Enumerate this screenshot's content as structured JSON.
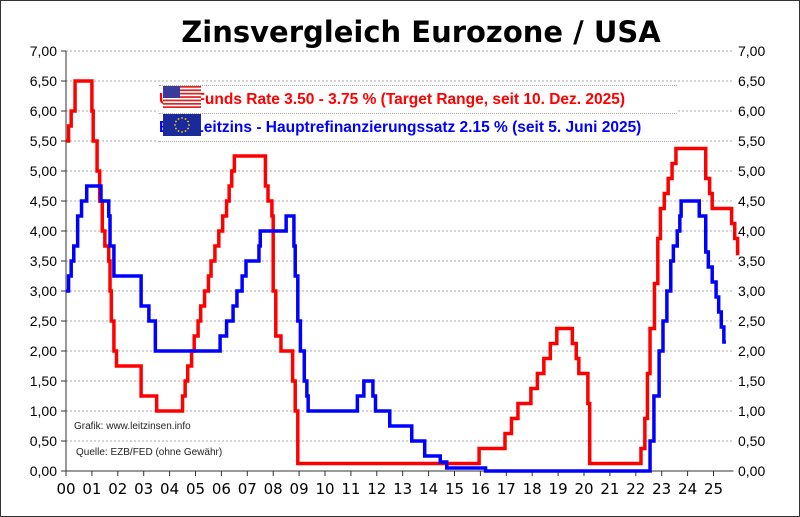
{
  "chart_data": {
    "type": "line",
    "title": "Zinsvergleich Eurozone / USA",
    "xlabel": "",
    "ylabel": "",
    "xlim": [
      2000,
      2026
    ],
    "ylim": [
      0,
      7
    ],
    "grid": true,
    "x_tick_labels": [
      "00",
      "01",
      "02",
      "03",
      "04",
      "05",
      "06",
      "07",
      "08",
      "09",
      "10",
      "11",
      "12",
      "13",
      "14",
      "15",
      "16",
      "17",
      "18",
      "19",
      "20",
      "21",
      "22",
      "23",
      "24",
      "25"
    ],
    "y_tick_labels": [
      "0,00",
      "0,50",
      "1,00",
      "1,50",
      "2,00",
      "2,50",
      "3,00",
      "3,50",
      "4,00",
      "4,50",
      "5,00",
      "5,50",
      "6,00",
      "6,50",
      "7,00"
    ],
    "legend_placement": "top-center",
    "series": [
      {
        "name": "USA Funds Rate 3.50 - 3.75 % (Target Range, seit 10. Dez. 2025)",
        "color": "#ff0000",
        "step": true,
        "points": [
          [
            2000.0,
            5.5
          ],
          [
            2000.1,
            5.75
          ],
          [
            2000.2,
            6.0
          ],
          [
            2000.35,
            6.5
          ],
          [
            2001.0,
            6.0
          ],
          [
            2001.05,
            5.5
          ],
          [
            2001.2,
            5.0
          ],
          [
            2001.3,
            4.5
          ],
          [
            2001.4,
            4.0
          ],
          [
            2001.5,
            3.75
          ],
          [
            2001.65,
            3.5
          ],
          [
            2001.7,
            3.0
          ],
          [
            2001.75,
            2.5
          ],
          [
            2001.85,
            2.0
          ],
          [
            2001.95,
            1.75
          ],
          [
            2002.9,
            1.25
          ],
          [
            2003.5,
            1.0
          ],
          [
            2004.5,
            1.25
          ],
          [
            2004.6,
            1.5
          ],
          [
            2004.7,
            1.75
          ],
          [
            2004.85,
            2.0
          ],
          [
            2004.95,
            2.25
          ],
          [
            2005.1,
            2.5
          ],
          [
            2005.2,
            2.75
          ],
          [
            2005.35,
            3.0
          ],
          [
            2005.5,
            3.25
          ],
          [
            2005.6,
            3.5
          ],
          [
            2005.75,
            3.75
          ],
          [
            2005.9,
            4.0
          ],
          [
            2006.05,
            4.25
          ],
          [
            2006.2,
            4.5
          ],
          [
            2006.3,
            4.75
          ],
          [
            2006.4,
            5.0
          ],
          [
            2006.5,
            5.25
          ],
          [
            2007.7,
            4.75
          ],
          [
            2007.8,
            4.5
          ],
          [
            2007.95,
            4.25
          ],
          [
            2008.0,
            3.0
          ],
          [
            2008.1,
            2.25
          ],
          [
            2008.3,
            2.0
          ],
          [
            2008.75,
            1.5
          ],
          [
            2008.85,
            1.0
          ],
          [
            2008.95,
            0.125
          ],
          [
            2015.95,
            0.375
          ],
          [
            2016.95,
            0.625
          ],
          [
            2017.2,
            0.875
          ],
          [
            2017.45,
            1.125
          ],
          [
            2017.95,
            1.375
          ],
          [
            2018.2,
            1.625
          ],
          [
            2018.45,
            1.875
          ],
          [
            2018.7,
            2.125
          ],
          [
            2018.95,
            2.375
          ],
          [
            2019.55,
            2.125
          ],
          [
            2019.7,
            1.875
          ],
          [
            2019.8,
            1.625
          ],
          [
            2020.15,
            1.125
          ],
          [
            2020.22,
            0.125
          ],
          [
            2022.2,
            0.375
          ],
          [
            2022.35,
            0.875
          ],
          [
            2022.45,
            1.625
          ],
          [
            2022.55,
            2.375
          ],
          [
            2022.72,
            3.125
          ],
          [
            2022.85,
            3.875
          ],
          [
            2022.95,
            4.375
          ],
          [
            2023.1,
            4.625
          ],
          [
            2023.25,
            4.875
          ],
          [
            2023.4,
            5.125
          ],
          [
            2023.55,
            5.375
          ],
          [
            2024.7,
            4.875
          ],
          [
            2024.85,
            4.625
          ],
          [
            2024.95,
            4.375
          ],
          [
            2025.7,
            4.125
          ],
          [
            2025.82,
            3.875
          ],
          [
            2025.93,
            3.625
          ],
          [
            2026.0,
            3.625
          ]
        ]
      },
      {
        "name": "EZB Leitzins - Hauptrefinanzierungssatz  2.15 % (seit 5. Juni 2025)",
        "color": "#0000ff",
        "step": true,
        "points": [
          [
            2000.0,
            3.0
          ],
          [
            2000.1,
            3.25
          ],
          [
            2000.2,
            3.5
          ],
          [
            2000.3,
            3.75
          ],
          [
            2000.45,
            4.25
          ],
          [
            2000.6,
            4.5
          ],
          [
            2000.8,
            4.75
          ],
          [
            2001.35,
            4.5
          ],
          [
            2001.65,
            4.25
          ],
          [
            2001.7,
            3.75
          ],
          [
            2001.85,
            3.25
          ],
          [
            2002.9,
            2.75
          ],
          [
            2003.2,
            2.5
          ],
          [
            2003.45,
            2.0
          ],
          [
            2005.95,
            2.25
          ],
          [
            2006.2,
            2.5
          ],
          [
            2006.45,
            2.75
          ],
          [
            2006.6,
            3.0
          ],
          [
            2006.8,
            3.25
          ],
          [
            2006.95,
            3.5
          ],
          [
            2007.45,
            3.75
          ],
          [
            2007.5,
            4.0
          ],
          [
            2008.5,
            4.25
          ],
          [
            2008.8,
            3.75
          ],
          [
            2008.85,
            3.25
          ],
          [
            2008.95,
            2.5
          ],
          [
            2009.05,
            2.0
          ],
          [
            2009.2,
            1.5
          ],
          [
            2009.3,
            1.25
          ],
          [
            2009.35,
            1.0
          ],
          [
            2011.25,
            1.25
          ],
          [
            2011.5,
            1.5
          ],
          [
            2011.85,
            1.25
          ],
          [
            2011.95,
            1.0
          ],
          [
            2012.5,
            0.75
          ],
          [
            2013.35,
            0.5
          ],
          [
            2013.85,
            0.25
          ],
          [
            2014.45,
            0.15
          ],
          [
            2014.7,
            0.05
          ],
          [
            2016.2,
            0.0
          ],
          [
            2022.55,
            0.5
          ],
          [
            2022.7,
            1.25
          ],
          [
            2022.9,
            2.0
          ],
          [
            2023.05,
            2.5
          ],
          [
            2023.2,
            3.0
          ],
          [
            2023.35,
            3.5
          ],
          [
            2023.45,
            3.75
          ],
          [
            2023.6,
            4.0
          ],
          [
            2023.7,
            4.25
          ],
          [
            2023.75,
            4.5
          ],
          [
            2024.45,
            4.25
          ],
          [
            2024.7,
            3.65
          ],
          [
            2024.8,
            3.4
          ],
          [
            2024.95,
            3.15
          ],
          [
            2025.1,
            2.9
          ],
          [
            2025.2,
            2.65
          ],
          [
            2025.3,
            2.4
          ],
          [
            2025.4,
            2.15
          ],
          [
            2025.48,
            2.15
          ]
        ]
      }
    ],
    "annotations": [
      "Grafik: www.leitzinsen.info",
      "Quelle: EZB/FED (ohne Gewähr)"
    ]
  },
  "legend": {
    "us": "USA Funds Rate 3.50 - 3.75 % (Target Range, seit 10. Dez. 2025)",
    "eu": "EZB Leitzins - Hauptrefinanzierungssatz  2.15 % (seit 5. Juni 2025)"
  },
  "notes": {
    "grafik": "Grafik: www.leitzinsen.info",
    "quelle": "Quelle: EZB/FED (ohne Gewähr)"
  }
}
